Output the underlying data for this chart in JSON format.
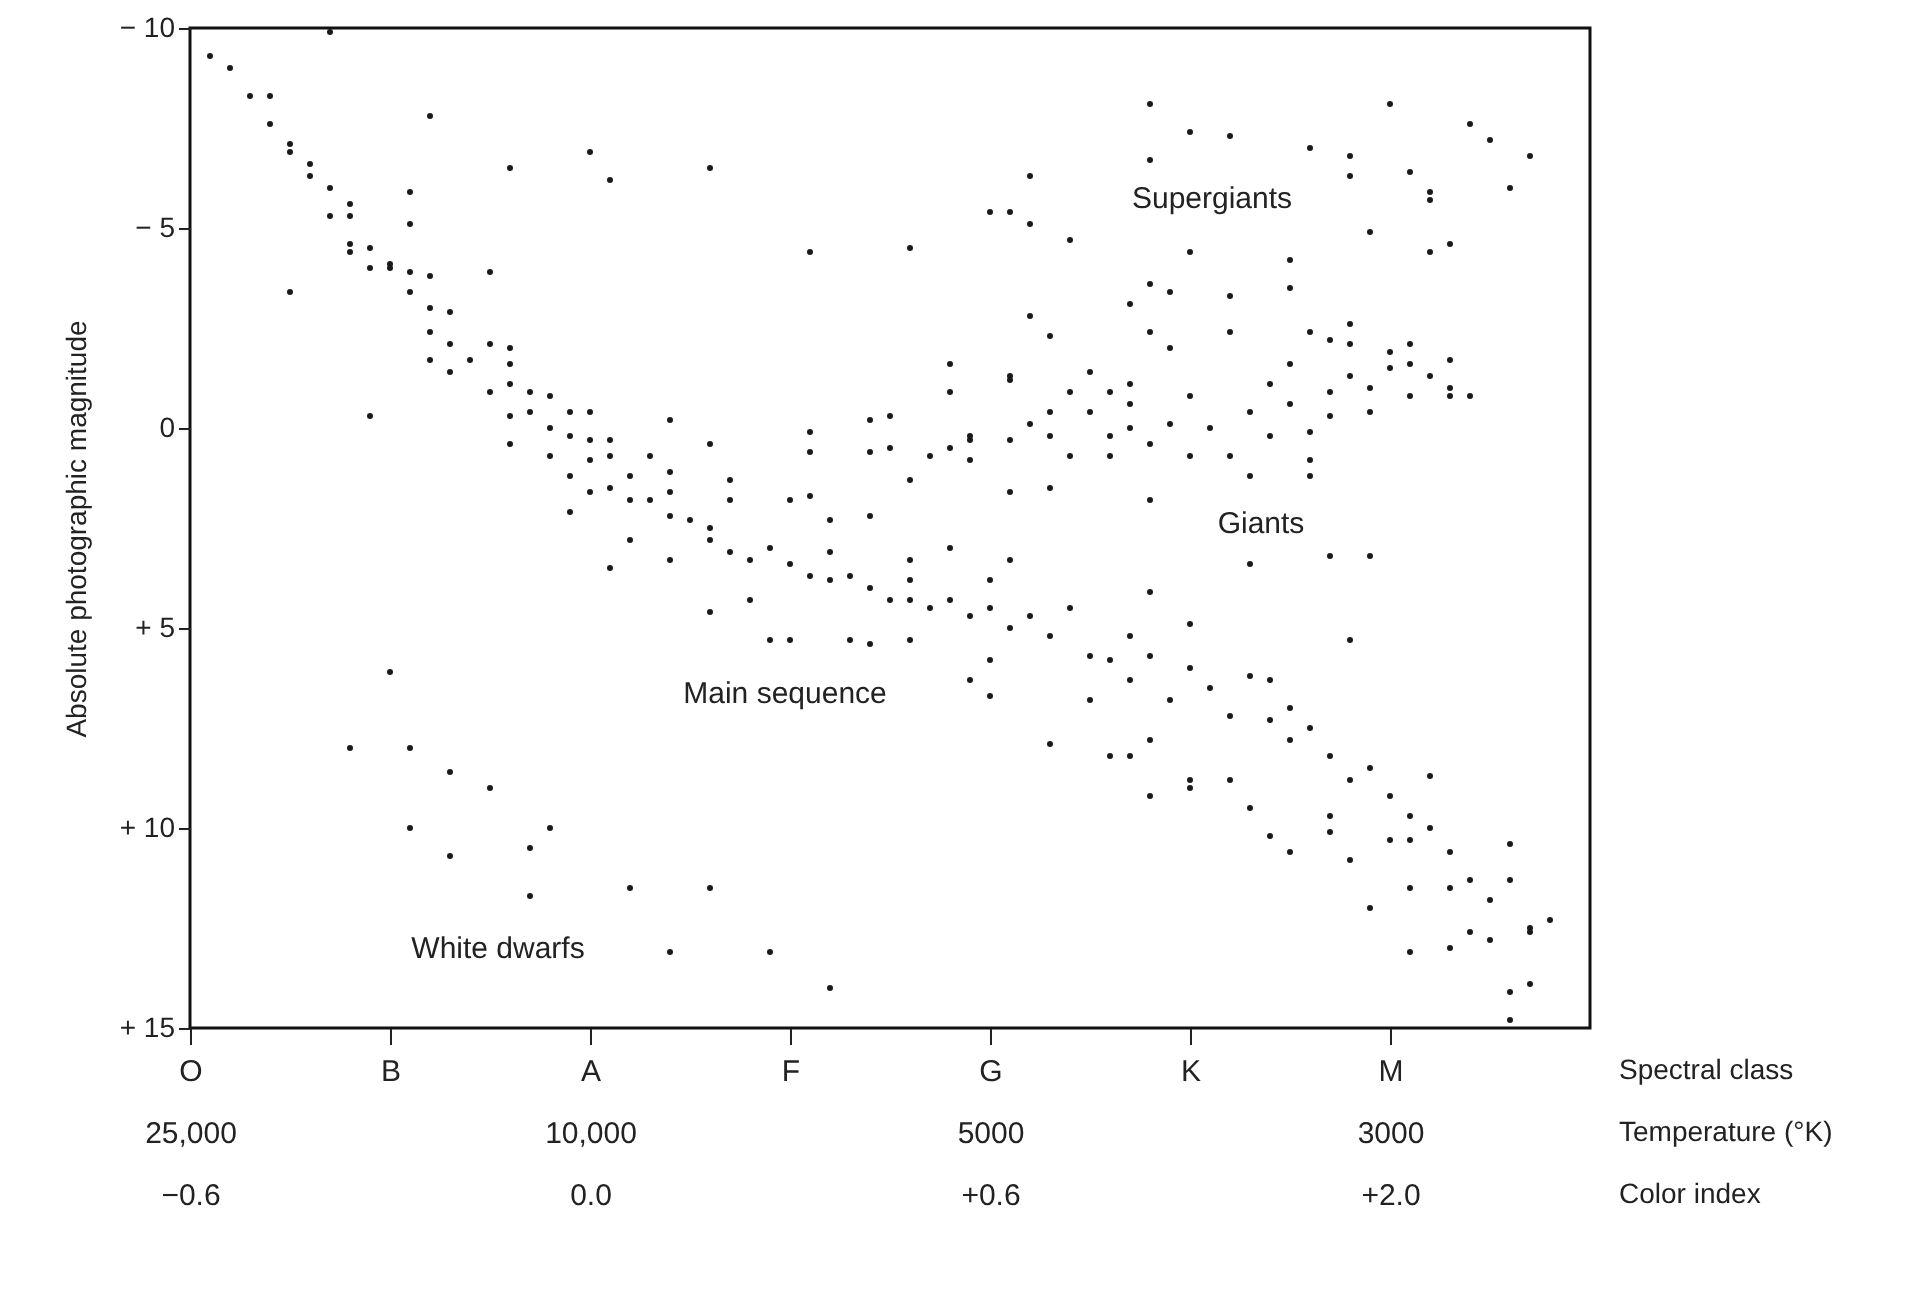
{
  "chart_data": {
    "type": "scatter",
    "ylabel": "Absolute photographic magnitude",
    "xlabel": "Spectral class\nTemperature (°K)\nColor index",
    "categories": [
      "O\n25,000\n−0.6",
      null,
      null,
      null,
      null,
      null,
      null,
      null,
      null,
      null,
      "B",
      null,
      null,
      null,
      null,
      null,
      null,
      null,
      null,
      null,
      "A\n10,000\n0.0",
      null,
      null,
      null,
      null,
      null,
      null,
      null,
      null,
      null,
      "F",
      null,
      null,
      null,
      null,
      null,
      null,
      null,
      null,
      null,
      "G\n5000\n+0.6",
      null,
      null,
      null,
      null,
      null,
      null,
      null,
      null,
      null,
      "K",
      null,
      null,
      null,
      null,
      null,
      null,
      null,
      null,
      null,
      "M\n3000\n+2.0",
      null,
      null,
      null,
      null,
      null,
      null,
      null,
      null,
      null,
      null
    ],
    "ylim": [
      15,
      -10
    ],
    "yticks": [
      {
        "value": -10,
        "label": "− 10"
      },
      {
        "value": -5,
        "label": "− 5"
      },
      0,
      {
        "value": 5,
        "label": "+ 5"
      },
      {
        "value": 10,
        "label": "+ 10"
      },
      {
        "value": 15,
        "label": "+ 15"
      }
    ],
    "marker": "circle",
    "annotations": [
      "Supergiants",
      "Giants",
      "Main sequence",
      "White dwarfs"
    ],
    "series": [
      {
        "color": "#1a1a1a",
        "values": [
          null,
          -9.3,
          -9.0,
          -8.3,
          -8.3,
          -7.1,
          -6.3,
          -6.0,
          -5.6,
          -4.5,
          -4.1,
          -3.9,
          -3.8,
          -2.9,
          -1.7,
          -2.1,
          -1.6,
          -0.9,
          -0.8,
          -0.4,
          -0.4,
          0.3,
          1.2,
          0.7,
          1.1,
          2.3,
          2.5,
          1.8,
          3.3,
          3.0,
          3.4,
          3.7,
          3.1,
          3.7,
          4.0,
          4.3,
          3.8,
          4.5,
          4.3,
          4.7,
          3.8,
          -5.4,
          -6.3,
          -2.3,
          -4.7,
          -1.4,
          -0.9,
          -3.1,
          -8.1,
          -3.4,
          -7.4,
          0.0,
          -7.3,
          -0.4,
          -1.1,
          -4.2,
          -7.0,
          -2.2,
          -6.8,
          -4.9,
          -8.1,
          -6.4,
          -5.9,
          -4.6,
          -7.6,
          -7.2,
          -6.0,
          -6.8,
          12.3,
          null,
          null
        ]
      },
      {
        "color": "#1a1a1a",
        "values": [
          null,
          null,
          null,
          null,
          -7.6,
          -6.9,
          -6.6,
          -5.3,
          -5.3,
          -4.0,
          -4.0,
          -3.4,
          -3.0,
          -2.1,
          null,
          -0.9,
          -2.0,
          -0.4,
          0.0,
          0.2,
          0.3,
          0.7,
          1.8,
          1.8,
          1.6,
          null,
          2.8,
          1.3,
          4.3,
          5.3,
          5.3,
          1.7,
          3.8,
          5.3,
          5.4,
          -0.3,
          4.3,
          0.7,
          3.0,
          6.3,
          5.8,
          -1.3,
          -5.1,
          -0.4,
          -0.9,
          -0.4,
          0.7,
          -1.1,
          -6.7,
          -2.0,
          -4.4,
          6.5,
          -3.3,
          1.2,
          0.2,
          -3.5,
          -2.4,
          -0.9,
          -6.3,
          -0.4,
          -1.9,
          -1.6,
          -5.7,
          -0.8,
          -0.8,
          11.8,
          10.4,
          12.5,
          null,
          null,
          null
        ]
      },
      {
        "color": "#1a1a1a",
        "values": [
          null,
          null,
          null,
          null,
          null,
          -3.4,
          null,
          -9.9,
          -4.4,
          -0.3,
          6.1,
          -5.9,
          -2.4,
          -1.4,
          null,
          -3.9,
          -1.1,
          10.5,
          0.7,
          1.2,
          0.8,
          1.5,
          2.8,
          null,
          2.2,
          null,
          4.6,
          3.1,
          null,
          13.1,
          1.8,
          -4.4,
          2.3,
          null,
          2.2,
          0.5,
          5.3,
          null,
          -1.6,
          0.3,
          -5.4,
          0.3,
          -2.8,
          0.2,
          0.7,
          5.7,
          0.2,
          -0.6,
          -3.6,
          -0.1,
          -0.8,
          null,
          -2.4,
          3.4,
          6.3,
          -1.6,
          0.8,
          -0.3,
          -2.6,
          -1.0,
          -1.5,
          -0.8,
          -4.4,
          -1.0,
          11.3,
          12.8,
          11.3,
          13.9,
          null,
          null,
          null
        ]
      },
      {
        "color": "#1a1a1a",
        "values": [
          null,
          null,
          null,
          null,
          null,
          null,
          null,
          null,
          -4.6,
          null,
          null,
          -5.1,
          -1.7,
          8.6,
          null,
          9.0,
          -0.3,
          11.7,
          10.0,
          2.1,
          1.6,
          3.5,
          11.5,
          null,
          3.3,
          null,
          -6.5,
          null,
          null,
          null,
          null,
          0.1,
          14.0,
          null,
          0.6,
          null,
          3.3,
          null,
          -0.9,
          0.8,
          4.5,
          -1.2,
          -0.1,
          1.5,
          4.5,
          6.8,
          5.8,
          0.0,
          -2.4,
          6.8,
          0.7,
          null,
          0.7,
          6.2,
          7.3,
          -0.6,
          0.1,
          3.2,
          -2.1,
          3.2,
          9.2,
          -2.1,
          -1.3,
          -1.7,
          12.6,
          null,
          14.1,
          12.6,
          null,
          null,
          null
        ]
      },
      {
        "color": "#1a1a1a",
        "values": [
          null,
          null,
          null,
          null,
          null,
          null,
          null,
          null,
          8.0,
          null,
          null,
          8.0,
          -7.8,
          10.7,
          null,
          null,
          0.4,
          null,
          null,
          null,
          -6.9,
          -6.2,
          null,
          null,
          -0.2,
          null,
          0.4,
          null,
          null,
          null,
          null,
          0.6,
          null,
          null,
          -0.2,
          null,
          -4.5,
          null,
          0.5,
          0.2,
          6.7,
          1.6,
          4.7,
          5.2,
          null,
          null,
          8.2,
          5.2,
          0.4,
          null,
          4.9,
          null,
          7.2,
          9.5,
          10.2,
          7.0,
          1.2,
          8.2,
          -1.3,
          8.5,
          10.3,
          9.7,
          10.0,
          10.6,
          null,
          null,
          14.8,
          null,
          null,
          null,
          null
        ]
      },
      {
        "color": "#1a1a1a",
        "values": [
          null,
          null,
          null,
          null,
          null,
          null,
          null,
          null,
          null,
          null,
          null,
          10.0,
          null,
          null,
          null,
          null,
          -6.5,
          null,
          null,
          null,
          null,
          null,
          null,
          null,
          13.1,
          null,
          11.5,
          null,
          null,
          null,
          null,
          null,
          null,
          null,
          null,
          null,
          1.3,
          null,
          null,
          null,
          null,
          3.3,
          null,
          7.9,
          null,
          null,
          null,
          6.3,
          1.8,
          null,
          6.0,
          null,
          8.8,
          null,
          null,
          7.8,
          7.5,
          10.1,
          5.3,
          12.0,
          null,
          10.3,
          8.7,
          13.0,
          null,
          null,
          null,
          null,
          null,
          null,
          null
        ]
      },
      {
        "color": "#1a1a1a",
        "values": [
          null,
          null,
          null,
          null,
          null,
          null,
          null,
          null,
          null,
          null,
          null,
          null,
          null,
          null,
          null,
          null,
          null,
          null,
          null,
          null,
          null,
          null,
          null,
          null,
          null,
          null,
          null,
          null,
          null,
          null,
          null,
          null,
          null,
          null,
          null,
          null,
          null,
          null,
          null,
          null,
          null,
          5.0,
          null,
          null,
          null,
          null,
          null,
          8.2,
          4.1,
          null,
          8.8,
          null,
          null,
          null,
          null,
          10.6,
          null,
          9.7,
          8.8,
          null,
          null,
          13.1,
          null,
          11.5,
          null,
          null,
          null,
          null,
          null,
          null,
          null
        ]
      },
      {
        "color": "#1a1a1a",
        "values": [
          null,
          null,
          null,
          null,
          null,
          null,
          null,
          null,
          null,
          null,
          null,
          null,
          null,
          null,
          null,
          null,
          null,
          null,
          null,
          null,
          null,
          null,
          null,
          null,
          null,
          null,
          null,
          null,
          null,
          null,
          null,
          null,
          null,
          null,
          null,
          null,
          null,
          null,
          null,
          null,
          null,
          null,
          null,
          null,
          null,
          null,
          null,
          null,
          5.7,
          null,
          9.0,
          null,
          null,
          null,
          null,
          null,
          null,
          null,
          10.8,
          null,
          null,
          11.5,
          null,
          null,
          null,
          null,
          null,
          null,
          null,
          null,
          null
        ]
      },
      {
        "color": "#1a1a1a",
        "values": [
          null,
          null,
          null,
          null,
          null,
          null,
          null,
          null,
          null,
          null,
          null,
          null,
          null,
          null,
          null,
          null,
          null,
          null,
          null,
          null,
          null,
          null,
          null,
          null,
          null,
          null,
          null,
          null,
          null,
          null,
          null,
          null,
          null,
          null,
          null,
          null,
          null,
          null,
          null,
          null,
          null,
          null,
          null,
          null,
          null,
          null,
          null,
          null,
          7.8,
          null,
          null,
          null,
          null,
          null,
          null,
          null,
          null,
          null,
          null,
          null,
          null,
          null,
          null,
          null,
          null,
          null,
          null,
          null,
          null,
          null,
          null
        ]
      },
      {
        "color": "#1a1a1a",
        "values": [
          null,
          null,
          null,
          null,
          null,
          null,
          null,
          null,
          null,
          null,
          null,
          null,
          null,
          null,
          null,
          null,
          null,
          null,
          null,
          null,
          null,
          null,
          null,
          null,
          null,
          null,
          null,
          null,
          null,
          null,
          null,
          null,
          null,
          null,
          null,
          null,
          null,
          null,
          null,
          null,
          null,
          null,
          null,
          null,
          null,
          null,
          null,
          null,
          9.2,
          null,
          null,
          null,
          null,
          null,
          null,
          null,
          null,
          null,
          null,
          null,
          null,
          null,
          null,
          null,
          null,
          null,
          null,
          null,
          null,
          null,
          null
        ]
      }
    ]
  }
}
